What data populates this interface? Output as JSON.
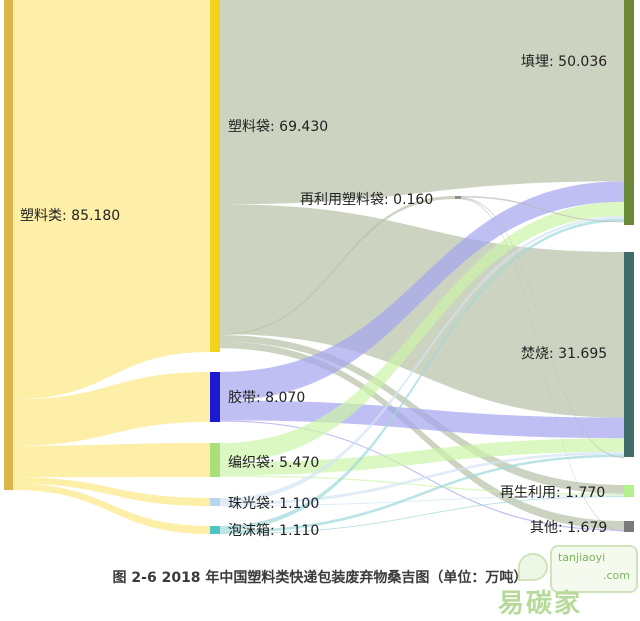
{
  "caption": "图 2-6 2018 年中国塑料类快递包装废弃物桑吉图（单位：万吨）",
  "watermark": {
    "cn": "易碳家",
    "domain": "tanjiaoyi",
    "suffix": ".com"
  },
  "chart_data": {
    "type": "sankey",
    "unit": "万吨",
    "nodes": [
      {
        "id": "plastic",
        "label": "塑料类: 85.180",
        "value": 85.18,
        "color": "#d9b64a"
      },
      {
        "id": "bag",
        "label": "塑料袋: 69.430",
        "value": 69.43,
        "color": "#f2d21c"
      },
      {
        "id": "tape",
        "label": "胶带: 8.070",
        "value": 8.07,
        "color": "#1a1ad0"
      },
      {
        "id": "woven",
        "label": "编织袋: 5.470",
        "value": 5.47,
        "color": "#a9e07a"
      },
      {
        "id": "pearl",
        "label": "珠光袋: 1.100",
        "value": 1.1,
        "color": "#b8d4ee"
      },
      {
        "id": "foam",
        "label": "泡沫箱: 1.110",
        "value": 1.11,
        "color": "#4fc4c4"
      },
      {
        "id": "reuse",
        "label": "再利用塑料袋: 0.160",
        "value": 0.16,
        "color": "#8e8e8e"
      },
      {
        "id": "landfill",
        "label": "填埋: 50.036",
        "value": 50.036,
        "color": "#6a8838"
      },
      {
        "id": "incin",
        "label": "焚烧: 31.695",
        "value": 31.695,
        "color": "#3f6b6b"
      },
      {
        "id": "recycle",
        "label": "再生利用: 1.770",
        "value": 1.77,
        "color": "#b3f08e"
      },
      {
        "id": "other",
        "label": "其他: 1.679",
        "value": 1.679,
        "color": "#7a7a7a"
      }
    ],
    "links": [
      {
        "source": "plastic",
        "target": "bag",
        "value": 69.43
      },
      {
        "source": "plastic",
        "target": "tape",
        "value": 8.07
      },
      {
        "source": "plastic",
        "target": "woven",
        "value": 5.47
      },
      {
        "source": "plastic",
        "target": "pearl",
        "value": 1.1
      },
      {
        "source": "plastic",
        "target": "foam",
        "value": 1.11
      },
      {
        "source": "bag",
        "target": "landfill",
        "value": 40.3
      },
      {
        "source": "bag",
        "target": "incin",
        "value": 25.6
      },
      {
        "source": "bag",
        "target": "reuse",
        "value": 0.16
      },
      {
        "source": "bag",
        "target": "recycle",
        "value": 1.3
      },
      {
        "source": "bag",
        "target": "other",
        "value": 1.3
      },
      {
        "source": "tape",
        "target": "landfill",
        "value": 4.6
      },
      {
        "source": "tape",
        "target": "incin",
        "value": 3.2
      },
      {
        "source": "tape",
        "target": "other",
        "value": 0.2
      },
      {
        "source": "woven",
        "target": "landfill",
        "value": 3.1
      },
      {
        "source": "woven",
        "target": "incin",
        "value": 2.1
      },
      {
        "source": "woven",
        "target": "recycle",
        "value": 0.2
      },
      {
        "source": "pearl",
        "target": "landfill",
        "value": 0.6
      },
      {
        "source": "pearl",
        "target": "incin",
        "value": 0.4
      },
      {
        "source": "pearl",
        "target": "recycle",
        "value": 0.1
      },
      {
        "source": "foam",
        "target": "landfill",
        "value": 0.6
      },
      {
        "source": "foam",
        "target": "incin",
        "value": 0.4
      },
      {
        "source": "foam",
        "target": "recycle",
        "value": 0.1
      },
      {
        "source": "reuse",
        "target": "landfill",
        "value": 0.08
      },
      {
        "source": "reuse",
        "target": "incin",
        "value": 0.05
      },
      {
        "source": "reuse",
        "target": "other",
        "value": 0.03
      }
    ]
  }
}
